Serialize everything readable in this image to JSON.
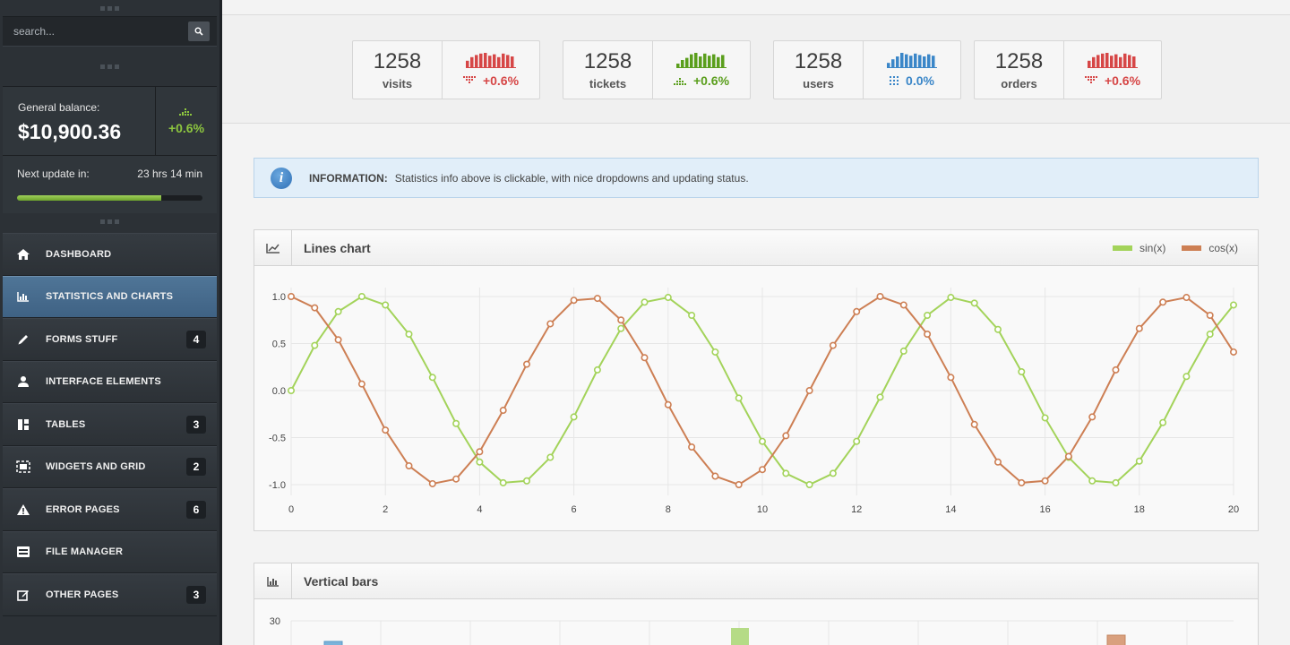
{
  "sidebar": {
    "search_placeholder": "search...",
    "balance": {
      "label": "General balance:",
      "value": "$10,900.36",
      "change": "+0.6%"
    },
    "update": {
      "label": "Next update in:",
      "value": "23 hrs 14 min",
      "progress": 0.78
    },
    "items": [
      {
        "label": "DASHBOARD",
        "icon": "home-icon",
        "badge": ""
      },
      {
        "label": "STATISTICS AND CHARTS",
        "icon": "bar-chart-icon",
        "badge": "",
        "active": true
      },
      {
        "label": "FORMS STUFF",
        "icon": "pencil-icon",
        "badge": "4"
      },
      {
        "label": "INTERFACE ELEMENTS",
        "icon": "user-icon",
        "badge": ""
      },
      {
        "label": "TABLES",
        "icon": "table-icon",
        "badge": "3"
      },
      {
        "label": "WIDGETS AND GRID",
        "icon": "widgets-icon",
        "badge": "2"
      },
      {
        "label": "ERROR PAGES",
        "icon": "warning-icon",
        "badge": "6"
      },
      {
        "label": "FILE MANAGER",
        "icon": "file-manager-icon",
        "badge": ""
      },
      {
        "label": "OTHER PAGES",
        "icon": "edit-page-icon",
        "badge": "3"
      }
    ]
  },
  "stats": [
    {
      "value": "1258",
      "label": "visits",
      "change": "+0.6%",
      "color": "#d64646",
      "trend": "down",
      "bars": [
        0.45,
        0.7,
        0.85,
        0.95,
        1,
        0.8,
        0.9,
        0.7,
        0.95,
        0.85,
        0.75
      ]
    },
    {
      "value": "1258",
      "label": "tickets",
      "change": "+0.6%",
      "color": "#5a9e1c",
      "trend": "up",
      "bars": [
        0.25,
        0.5,
        0.65,
        0.9,
        1,
        0.75,
        0.95,
        0.8,
        0.9,
        0.7,
        0.85
      ]
    },
    {
      "value": "1258",
      "label": "users",
      "change": "0.0%",
      "color": "#3a86c8",
      "trend": "flat",
      "bars": [
        0.3,
        0.55,
        0.75,
        1,
        0.9,
        0.8,
        0.95,
        0.85,
        0.75,
        0.9,
        0.8
      ]
    },
    {
      "value": "1258",
      "label": "orders",
      "change": "+0.6%",
      "color": "#d64646",
      "trend": "down",
      "bars": [
        0.45,
        0.7,
        0.85,
        0.95,
        1,
        0.8,
        0.9,
        0.7,
        0.95,
        0.85,
        0.75
      ]
    }
  ],
  "info": {
    "title": "INFORMATION:",
    "text": "Statistics info above is clickable, with nice dropdowns and updating status."
  },
  "lines_panel": {
    "title": "Lines chart"
  },
  "bars_panel": {
    "title": "Vertical bars"
  },
  "colors": {
    "sin": "#a3d35a",
    "cos": "#cd7f54",
    "bar_blue": "#7bb3da",
    "bar_green": "#b5db86",
    "bar_orange": "#d9a07e"
  },
  "chart_data": [
    {
      "type": "line",
      "x": [
        0,
        0.5,
        1,
        1.5,
        2,
        2.5,
        3,
        3.5,
        4,
        4.5,
        5,
        5.5,
        6,
        6.5,
        7,
        7.5,
        8,
        8.5,
        9,
        9.5,
        10,
        10.5,
        11,
        11.5,
        12,
        12.5,
        13,
        13.5,
        14,
        14.5,
        15,
        15.5,
        16,
        16.5,
        17,
        17.5,
        18,
        18.5,
        19,
        19.5,
        20
      ],
      "series": [
        {
          "name": "sin(x)",
          "values": [
            0,
            0.48,
            0.84,
            1.0,
            0.91,
            0.6,
            0.14,
            -0.35,
            -0.76,
            -0.98,
            -0.96,
            -0.71,
            -0.28,
            0.22,
            0.66,
            0.94,
            0.99,
            0.8,
            0.41,
            -0.08,
            -0.54,
            -0.88,
            -1.0,
            -0.88,
            -0.54,
            -0.07,
            0.42,
            0.8,
            0.99,
            0.93,
            0.65,
            0.2,
            -0.29,
            -0.71,
            -0.96,
            -0.98,
            -0.75,
            -0.34,
            0.15,
            0.6,
            0.91
          ]
        },
        {
          "name": "cos(x)",
          "values": [
            1.0,
            0.88,
            0.54,
            0.07,
            -0.42,
            -0.8,
            -0.99,
            -0.94,
            -0.65,
            -0.21,
            0.28,
            0.71,
            0.96,
            0.98,
            0.75,
            0.35,
            -0.15,
            -0.6,
            -0.91,
            -1.0,
            -0.84,
            -0.48,
            0.0,
            0.48,
            0.84,
            1.0,
            0.91,
            0.6,
            0.14,
            -0.36,
            -0.76,
            -0.98,
            -0.96,
            -0.7,
            -0.28,
            0.22,
            0.66,
            0.94,
            0.99,
            0.8,
            0.41
          ]
        }
      ],
      "xticks": [
        "0",
        "2",
        "4",
        "6",
        "8",
        "10",
        "12",
        "14",
        "16",
        "18",
        "20"
      ],
      "yticks": [
        "1.0",
        "0.5",
        "0.0",
        "-0.5",
        "-1.0"
      ],
      "xlim": [
        0,
        20
      ],
      "ylim": [
        -1,
        1
      ],
      "grid": true,
      "legend": "top-right"
    },
    {
      "type": "bar",
      "yticks": [
        "30"
      ],
      "grid": true
    }
  ]
}
